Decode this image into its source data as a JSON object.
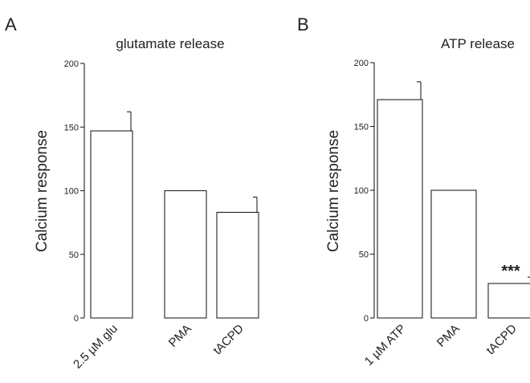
{
  "chart_data": [
    {
      "type": "bar",
      "panel": "A",
      "title": "glutamate release",
      "ylabel": "Calcium response",
      "xlabel": "",
      "categories": [
        "2.5 µM glu",
        "PMA",
        "tACPD"
      ],
      "values": [
        147,
        100,
        83
      ],
      "errors": [
        15,
        0,
        12
      ],
      "annotations": [
        "",
        "",
        ""
      ],
      "ylim": [
        0,
        200
      ],
      "yticks": [
        0,
        50,
        100,
        150,
        200
      ],
      "grid": false
    },
    {
      "type": "bar",
      "panel": "B",
      "title": "ATP release",
      "ylabel": "Calcium response",
      "xlabel": "",
      "categories": [
        "1 µM ATP",
        "PMA",
        "tACPD"
      ],
      "values": [
        171,
        100,
        27
      ],
      "errors": [
        14,
        0,
        5
      ],
      "annotations": [
        "",
        "",
        "***"
      ],
      "ylim": [
        0,
        200
      ],
      "yticks": [
        0,
        50,
        100,
        150,
        200
      ],
      "grid": false
    }
  ]
}
